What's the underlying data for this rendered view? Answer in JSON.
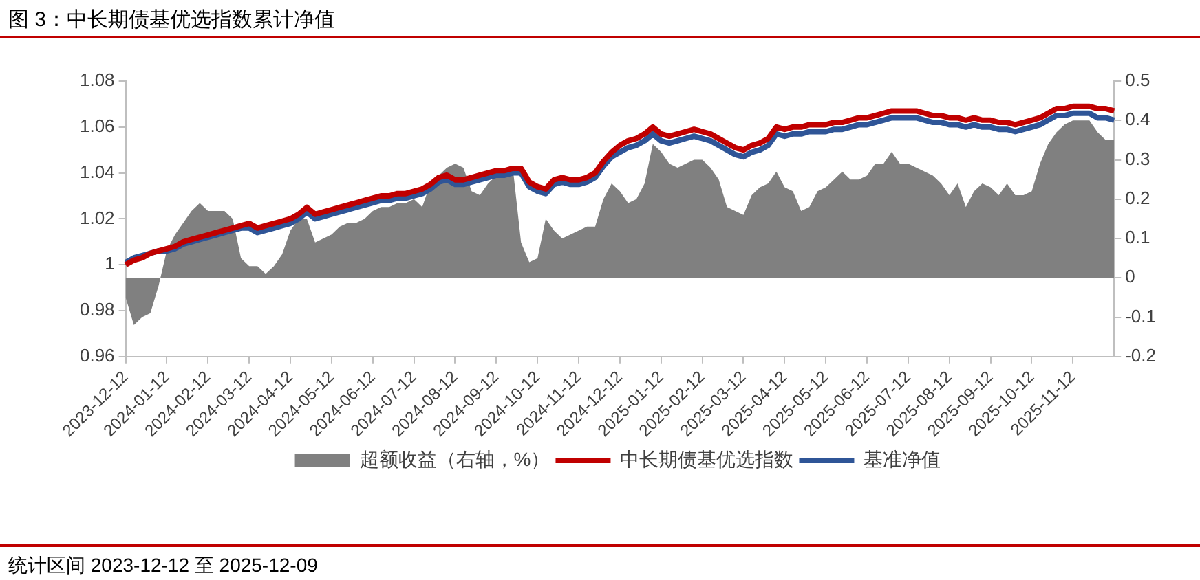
{
  "chart_data": {
    "type": "line",
    "title": "图 3：中长期债基优选指数累计净值",
    "categories": [
      "2023-12-12",
      null,
      null,
      null,
      null,
      "2024-01-12",
      null,
      null,
      null,
      null,
      "2024-02-12",
      null,
      null,
      null,
      null,
      "2024-03-12",
      null,
      null,
      null,
      null,
      "2024-04-12",
      null,
      null,
      null,
      null,
      "2024-05-12",
      null,
      null,
      null,
      null,
      "2024-06-12",
      null,
      null,
      null,
      null,
      "2024-07-12",
      null,
      null,
      null,
      null,
      "2024-08-12",
      null,
      null,
      null,
      null,
      "2024-09-12",
      null,
      null,
      null,
      null,
      "2024-10-12",
      null,
      null,
      null,
      null,
      "2024-11-12",
      null,
      null,
      null,
      null,
      "2024-12-12",
      null,
      null,
      null,
      null,
      "2025-01-12",
      null,
      null,
      null,
      null,
      "2025-02-12",
      null,
      null,
      null,
      null,
      "2025-03-12",
      null,
      null,
      null,
      null,
      "2025-04-12",
      null,
      null,
      null,
      null,
      "2025-05-12",
      null,
      null,
      null,
      null,
      "2025-06-12",
      null,
      null,
      null,
      null,
      "2025-07-12",
      null,
      null,
      null,
      null,
      "2025-08-12",
      null,
      null,
      null,
      null,
      "2025-09-12",
      null,
      null,
      null,
      null,
      "2025-10-12",
      null,
      null,
      null,
      null,
      "2025-11-12",
      null,
      null,
      null,
      null,
      null
    ],
    "series": [
      {
        "name": "超额收益（右轴，%）",
        "type": "area",
        "axis": "y2",
        "color": "#808080",
        "values": [
          -0.05,
          -0.12,
          -0.1,
          -0.09,
          -0.02,
          0.07,
          0.11,
          0.14,
          0.17,
          0.19,
          0.17,
          0.17,
          0.17,
          0.15,
          0.05,
          0.03,
          0.03,
          0.01,
          0.03,
          0.06,
          0.12,
          0.15,
          0.15,
          0.09,
          0.1,
          0.11,
          0.13,
          0.14,
          0.14,
          0.15,
          0.17,
          0.18,
          0.18,
          0.19,
          0.19,
          0.2,
          0.18,
          0.24,
          0.26,
          0.28,
          0.29,
          0.28,
          0.22,
          0.21,
          0.24,
          0.26,
          0.27,
          0.28,
          0.09,
          0.04,
          0.05,
          0.15,
          0.12,
          0.1,
          0.11,
          0.12,
          0.13,
          0.13,
          0.2,
          0.24,
          0.22,
          0.19,
          0.2,
          0.24,
          0.34,
          0.32,
          0.29,
          0.28,
          0.29,
          0.3,
          0.3,
          0.28,
          0.25,
          0.18,
          0.17,
          0.16,
          0.21,
          0.23,
          0.24,
          0.27,
          0.23,
          0.22,
          0.17,
          0.18,
          0.22,
          0.23,
          0.25,
          0.27,
          0.25,
          0.25,
          0.26,
          0.29,
          0.29,
          0.32,
          0.29,
          0.29,
          0.28,
          0.27,
          0.26,
          0.24,
          0.21,
          0.24,
          0.18,
          0.22,
          0.24,
          0.23,
          0.21,
          0.24,
          0.21,
          0.21,
          0.22,
          0.29,
          0.34,
          0.37,
          0.39,
          0.4,
          0.4,
          0.4,
          0.37,
          0.35,
          0.35
        ]
      },
      {
        "name": "中长期债基优选指数",
        "type": "line",
        "color": "#c00000",
        "values": [
          1.0,
          1.002,
          1.003,
          1.005,
          1.006,
          1.007,
          1.008,
          1.01,
          1.011,
          1.012,
          1.013,
          1.014,
          1.015,
          1.016,
          1.017,
          1.018,
          1.016,
          1.017,
          1.018,
          1.019,
          1.02,
          1.022,
          1.025,
          1.022,
          1.023,
          1.024,
          1.025,
          1.026,
          1.027,
          1.028,
          1.029,
          1.03,
          1.03,
          1.031,
          1.031,
          1.032,
          1.033,
          1.035,
          1.038,
          1.039,
          1.037,
          1.037,
          1.038,
          1.039,
          1.04,
          1.041,
          1.041,
          1.042,
          1.042,
          1.036,
          1.034,
          1.033,
          1.037,
          1.038,
          1.037,
          1.037,
          1.038,
          1.04,
          1.045,
          1.049,
          1.052,
          1.054,
          1.055,
          1.057,
          1.06,
          1.057,
          1.056,
          1.057,
          1.058,
          1.059,
          1.058,
          1.057,
          1.055,
          1.053,
          1.051,
          1.05,
          1.052,
          1.053,
          1.055,
          1.06,
          1.059,
          1.06,
          1.06,
          1.061,
          1.061,
          1.061,
          1.062,
          1.062,
          1.063,
          1.064,
          1.064,
          1.065,
          1.066,
          1.067,
          1.067,
          1.067,
          1.067,
          1.066,
          1.065,
          1.065,
          1.064,
          1.064,
          1.063,
          1.064,
          1.063,
          1.063,
          1.062,
          1.062,
          1.061,
          1.062,
          1.063,
          1.064,
          1.066,
          1.068,
          1.068,
          1.069,
          1.069,
          1.069,
          1.068,
          1.068,
          1.067
        ]
      },
      {
        "name": "基准净值",
        "type": "line",
        "color": "#2f5597",
        "values": [
          1.001,
          1.003,
          1.004,
          1.005,
          1.006,
          1.006,
          1.007,
          1.009,
          1.01,
          1.011,
          1.012,
          1.013,
          1.014,
          1.015,
          1.016,
          1.016,
          1.014,
          1.015,
          1.016,
          1.017,
          1.018,
          1.02,
          1.023,
          1.02,
          1.021,
          1.022,
          1.023,
          1.024,
          1.025,
          1.026,
          1.027,
          1.028,
          1.028,
          1.029,
          1.029,
          1.03,
          1.031,
          1.033,
          1.036,
          1.037,
          1.035,
          1.035,
          1.036,
          1.037,
          1.038,
          1.039,
          1.039,
          1.04,
          1.04,
          1.034,
          1.032,
          1.031,
          1.035,
          1.036,
          1.035,
          1.035,
          1.036,
          1.038,
          1.043,
          1.047,
          1.049,
          1.051,
          1.052,
          1.054,
          1.057,
          1.054,
          1.053,
          1.054,
          1.055,
          1.056,
          1.055,
          1.054,
          1.052,
          1.05,
          1.048,
          1.047,
          1.049,
          1.05,
          1.052,
          1.057,
          1.056,
          1.057,
          1.057,
          1.058,
          1.058,
          1.058,
          1.059,
          1.059,
          1.06,
          1.061,
          1.061,
          1.062,
          1.063,
          1.064,
          1.064,
          1.064,
          1.064,
          1.063,
          1.062,
          1.062,
          1.061,
          1.061,
          1.06,
          1.061,
          1.06,
          1.06,
          1.059,
          1.059,
          1.058,
          1.059,
          1.06,
          1.061,
          1.063,
          1.065,
          1.065,
          1.066,
          1.066,
          1.066,
          1.064,
          1.064,
          1.063
        ]
      }
    ],
    "ylim": [
      0.96,
      1.08
    ],
    "yticks": [
      0.96,
      0.98,
      1,
      1.02,
      1.04,
      1.06,
      1.08
    ],
    "y2lim": [
      -0.2,
      0.5
    ],
    "y2ticks": [
      -0.2,
      -0.1,
      0,
      0.1,
      0.2,
      0.3,
      0.4,
      0.5
    ],
    "legend": "bottom",
    "marker": "none",
    "annotations": [
      "统计区间 2023-12-12 至 2025-12-09"
    ]
  }
}
